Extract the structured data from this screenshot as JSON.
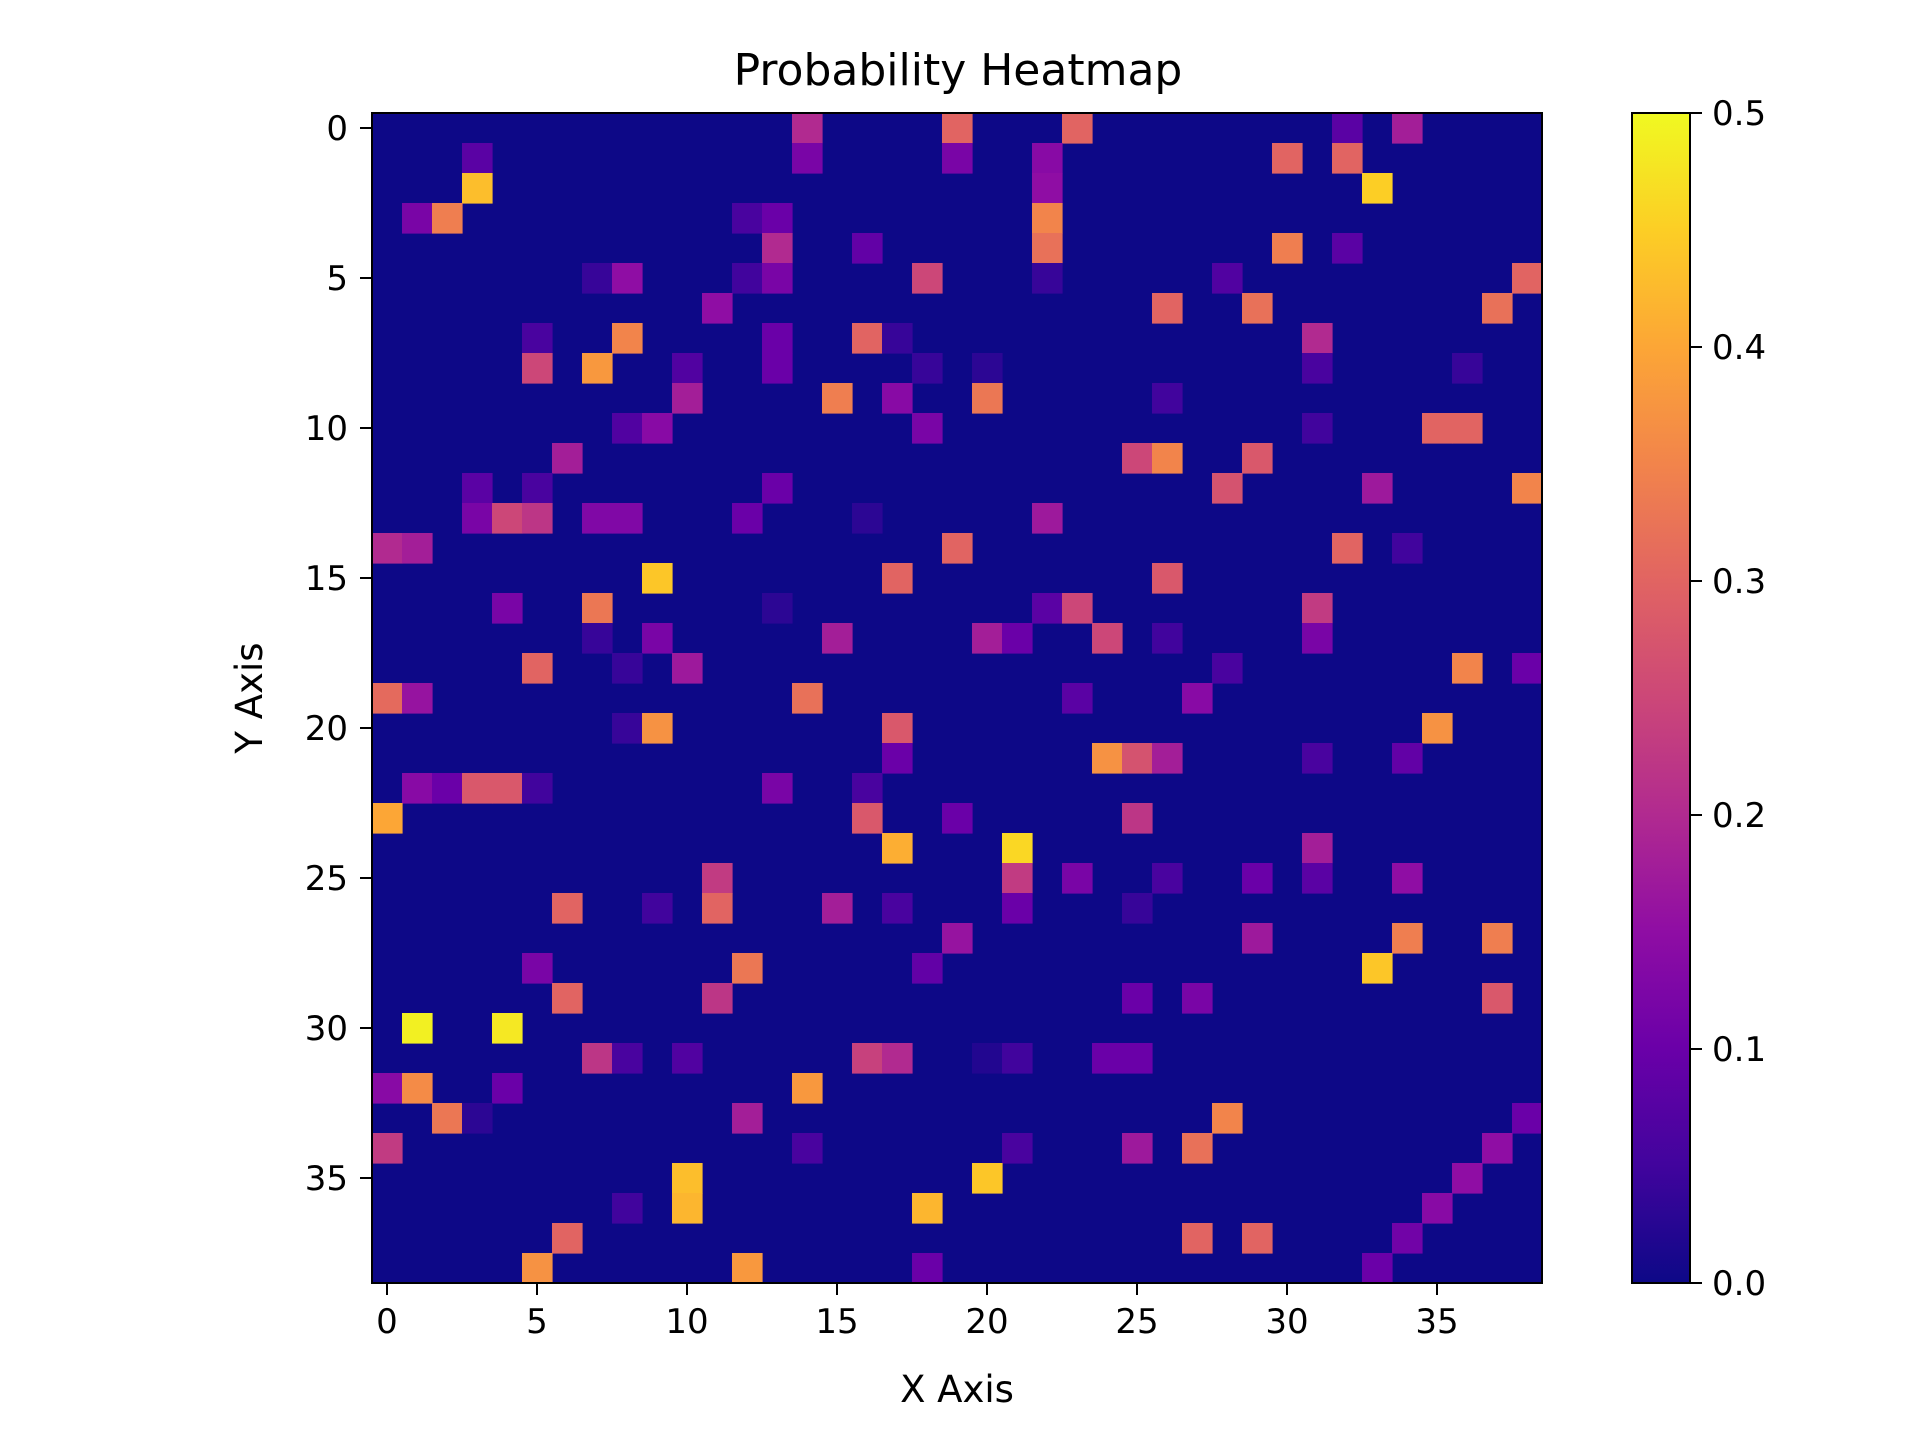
{
  "chart_data": {
    "type": "heatmap",
    "title": "Probability Heatmap",
    "xlabel": "X Axis",
    "ylabel": "Y Axis",
    "rows": 39,
    "cols": 39,
    "x_ticks": [
      0,
      5,
      10,
      15,
      20,
      25,
      30,
      35
    ],
    "y_ticks": [
      0,
      5,
      10,
      15,
      20,
      25,
      30,
      35
    ],
    "y_inverted": true,
    "colormap": "plasma",
    "colorbar": {
      "min": 0.0,
      "max": 0.5,
      "ticks": [
        "0.0",
        "0.1",
        "0.2",
        "0.3",
        "0.4",
        "0.5"
      ]
    },
    "grid": false,
    "background_value": 0.0,
    "cells": [
      [
        0,
        14,
        0.2
      ],
      [
        0,
        19,
        0.3
      ],
      [
        0,
        23,
        0.3
      ],
      [
        0,
        32,
        0.08
      ],
      [
        0,
        34,
        0.18
      ],
      [
        1,
        3,
        0.08
      ],
      [
        1,
        14,
        0.12
      ],
      [
        1,
        19,
        0.12
      ],
      [
        1,
        22,
        0.14
      ],
      [
        1,
        30,
        0.3
      ],
      [
        1,
        32,
        0.3
      ],
      [
        2,
        3,
        0.43
      ],
      [
        2,
        22,
        0.15
      ],
      [
        2,
        33,
        0.45
      ],
      [
        3,
        1,
        0.12
      ],
      [
        3,
        2,
        0.34
      ],
      [
        3,
        12,
        0.06
      ],
      [
        3,
        13,
        0.1
      ],
      [
        3,
        22,
        0.35
      ],
      [
        4,
        13,
        0.2
      ],
      [
        4,
        16,
        0.09
      ],
      [
        4,
        22,
        0.32
      ],
      [
        4,
        30,
        0.34
      ],
      [
        4,
        32,
        0.08
      ],
      [
        5,
        7,
        0.04
      ],
      [
        5,
        8,
        0.15
      ],
      [
        5,
        12,
        0.05
      ],
      [
        5,
        13,
        0.12
      ],
      [
        5,
        18,
        0.25
      ],
      [
        5,
        22,
        0.04
      ],
      [
        5,
        28,
        0.07
      ],
      [
        5,
        38,
        0.3
      ],
      [
        6,
        11,
        0.15
      ],
      [
        6,
        26,
        0.3
      ],
      [
        6,
        29,
        0.32
      ],
      [
        6,
        37,
        0.32
      ],
      [
        7,
        5,
        0.06
      ],
      [
        7,
        8,
        0.35
      ],
      [
        7,
        13,
        0.1
      ],
      [
        7,
        16,
        0.3
      ],
      [
        7,
        17,
        0.04
      ],
      [
        7,
        31,
        0.2
      ],
      [
        8,
        5,
        0.25
      ],
      [
        8,
        7,
        0.38
      ],
      [
        8,
        10,
        0.07
      ],
      [
        8,
        13,
        0.1
      ],
      [
        8,
        18,
        0.04
      ],
      [
        8,
        20,
        0.03
      ],
      [
        8,
        31,
        0.06
      ],
      [
        8,
        36,
        0.04
      ],
      [
        9,
        10,
        0.18
      ],
      [
        9,
        15,
        0.34
      ],
      [
        9,
        17,
        0.14
      ],
      [
        9,
        20,
        0.33
      ],
      [
        9,
        26,
        0.05
      ],
      [
        10,
        8,
        0.07
      ],
      [
        10,
        9,
        0.14
      ],
      [
        10,
        18,
        0.12
      ],
      [
        10,
        31,
        0.05
      ],
      [
        10,
        35,
        0.3
      ],
      [
        10,
        36,
        0.3
      ],
      [
        11,
        6,
        0.18
      ],
      [
        11,
        25,
        0.25
      ],
      [
        11,
        26,
        0.35
      ],
      [
        11,
        29,
        0.28
      ],
      [
        12,
        3,
        0.08
      ],
      [
        12,
        5,
        0.06
      ],
      [
        12,
        13,
        0.1
      ],
      [
        12,
        28,
        0.27
      ],
      [
        12,
        33,
        0.17
      ],
      [
        12,
        38,
        0.35
      ],
      [
        13,
        3,
        0.12
      ],
      [
        13,
        4,
        0.25
      ],
      [
        13,
        5,
        0.22
      ],
      [
        13,
        7,
        0.13
      ],
      [
        13,
        8,
        0.13
      ],
      [
        13,
        12,
        0.1
      ],
      [
        13,
        16,
        0.03
      ],
      [
        13,
        22,
        0.17
      ],
      [
        14,
        0,
        0.2
      ],
      [
        14,
        1,
        0.18
      ],
      [
        14,
        19,
        0.3
      ],
      [
        14,
        32,
        0.3
      ],
      [
        14,
        34,
        0.05
      ],
      [
        15,
        9,
        0.44
      ],
      [
        15,
        17,
        0.3
      ],
      [
        15,
        26,
        0.28
      ],
      [
        16,
        4,
        0.12
      ],
      [
        16,
        7,
        0.33
      ],
      [
        16,
        13,
        0.03
      ],
      [
        16,
        22,
        0.08
      ],
      [
        16,
        23,
        0.25
      ],
      [
        16,
        31,
        0.23
      ],
      [
        17,
        7,
        0.04
      ],
      [
        17,
        9,
        0.12
      ],
      [
        17,
        15,
        0.18
      ],
      [
        17,
        20,
        0.18
      ],
      [
        17,
        21,
        0.1
      ],
      [
        17,
        24,
        0.25
      ],
      [
        17,
        26,
        0.05
      ],
      [
        17,
        31,
        0.12
      ],
      [
        18,
        5,
        0.3
      ],
      [
        18,
        8,
        0.04
      ],
      [
        18,
        10,
        0.17
      ],
      [
        18,
        28,
        0.06
      ],
      [
        18,
        36,
        0.35
      ],
      [
        18,
        38,
        0.1
      ],
      [
        19,
        0,
        0.31
      ],
      [
        19,
        1,
        0.16
      ],
      [
        19,
        14,
        0.32
      ],
      [
        19,
        23,
        0.08
      ],
      [
        19,
        27,
        0.14
      ],
      [
        20,
        8,
        0.04
      ],
      [
        20,
        9,
        0.37
      ],
      [
        20,
        17,
        0.28
      ],
      [
        20,
        35,
        0.37
      ],
      [
        21,
        17,
        0.1
      ],
      [
        21,
        24,
        0.37
      ],
      [
        21,
        25,
        0.27
      ],
      [
        21,
        26,
        0.18
      ],
      [
        21,
        31,
        0.06
      ],
      [
        21,
        34,
        0.09
      ],
      [
        22,
        1,
        0.14
      ],
      [
        22,
        2,
        0.1
      ],
      [
        22,
        3,
        0.28
      ],
      [
        22,
        4,
        0.28
      ],
      [
        22,
        5,
        0.05
      ],
      [
        22,
        13,
        0.12
      ],
      [
        22,
        16,
        0.06
      ],
      [
        23,
        0,
        0.4
      ],
      [
        23,
        16,
        0.28
      ],
      [
        23,
        19,
        0.1
      ],
      [
        23,
        25,
        0.22
      ],
      [
        24,
        17,
        0.41
      ],
      [
        24,
        21,
        0.46
      ],
      [
        24,
        31,
        0.18
      ],
      [
        25,
        11,
        0.23
      ],
      [
        25,
        21,
        0.23
      ],
      [
        25,
        23,
        0.12
      ],
      [
        25,
        26,
        0.06
      ],
      [
        25,
        29,
        0.1
      ],
      [
        25,
        31,
        0.08
      ],
      [
        25,
        34,
        0.15
      ],
      [
        26,
        6,
        0.3
      ],
      [
        26,
        9,
        0.05
      ],
      [
        26,
        11,
        0.3
      ],
      [
        26,
        15,
        0.18
      ],
      [
        26,
        17,
        0.06
      ],
      [
        26,
        21,
        0.1
      ],
      [
        26,
        25,
        0.04
      ],
      [
        27,
        19,
        0.16
      ],
      [
        27,
        29,
        0.17
      ],
      [
        27,
        34,
        0.34
      ],
      [
        27,
        37,
        0.34
      ],
      [
        28,
        5,
        0.12
      ],
      [
        28,
        12,
        0.33
      ],
      [
        28,
        18,
        0.09
      ],
      [
        28,
        33,
        0.44
      ],
      [
        29,
        6,
        0.3
      ],
      [
        29,
        11,
        0.22
      ],
      [
        29,
        25,
        0.1
      ],
      [
        29,
        27,
        0.12
      ],
      [
        29,
        37,
        0.28
      ],
      [
        30,
        1,
        0.49
      ],
      [
        30,
        4,
        0.48
      ],
      [
        31,
        7,
        0.22
      ],
      [
        31,
        8,
        0.06
      ],
      [
        31,
        10,
        0.07
      ],
      [
        31,
        16,
        0.24
      ],
      [
        31,
        17,
        0.2
      ],
      [
        31,
        20,
        0.02
      ],
      [
        31,
        21,
        0.05
      ],
      [
        31,
        24,
        0.1
      ],
      [
        31,
        25,
        0.1
      ],
      [
        32,
        0,
        0.14
      ],
      [
        32,
        1,
        0.36
      ],
      [
        32,
        4,
        0.1
      ],
      [
        32,
        14,
        0.38
      ],
      [
        33,
        2,
        0.33
      ],
      [
        33,
        3,
        0.03
      ],
      [
        33,
        12,
        0.18
      ],
      [
        33,
        28,
        0.35
      ],
      [
        33,
        38,
        0.1
      ],
      [
        34,
        0,
        0.23
      ],
      [
        34,
        14,
        0.06
      ],
      [
        34,
        21,
        0.06
      ],
      [
        34,
        25,
        0.17
      ],
      [
        34,
        27,
        0.32
      ],
      [
        34,
        37,
        0.15
      ],
      [
        35,
        10,
        0.43
      ],
      [
        35,
        20,
        0.44
      ],
      [
        35,
        36,
        0.15
      ],
      [
        36,
        8,
        0.05
      ],
      [
        36,
        10,
        0.42
      ],
      [
        36,
        18,
        0.42
      ],
      [
        36,
        35,
        0.14
      ],
      [
        37,
        6,
        0.3
      ],
      [
        37,
        27,
        0.3
      ],
      [
        37,
        29,
        0.3
      ],
      [
        37,
        34,
        0.11
      ],
      [
        38,
        5,
        0.37
      ],
      [
        38,
        12,
        0.38
      ],
      [
        38,
        18,
        0.1
      ],
      [
        38,
        33,
        0.1
      ]
    ]
  }
}
